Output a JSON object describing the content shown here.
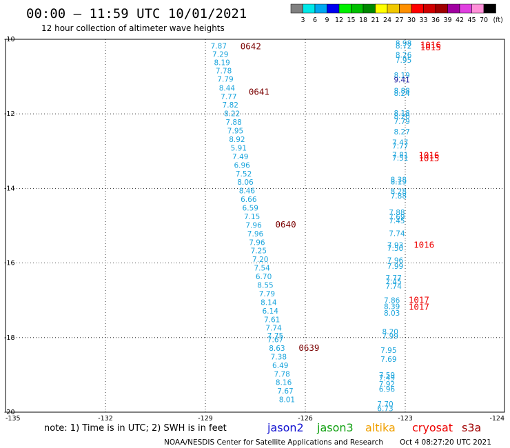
{
  "header": {
    "title": "00:00 – 11:59 UTC 10/01/2021",
    "subtitle": "12 hour collection of altimeter wave heights"
  },
  "legend": {
    "swatches": [
      {
        "color": "#808080",
        "label": "3"
      },
      {
        "color": "#00e8e8",
        "label": "6"
      },
      {
        "color": "#00a8f0",
        "label": "9"
      },
      {
        "color": "#0000f0",
        "label": "12"
      },
      {
        "color": "#00f000",
        "label": "15"
      },
      {
        "color": "#00c000",
        "label": "18"
      },
      {
        "color": "#008800",
        "label": "21"
      },
      {
        "color": "#ffff00",
        "label": "24"
      },
      {
        "color": "#f0c800",
        "label": "27"
      },
      {
        "color": "#ff9000",
        "label": "30"
      },
      {
        "color": "#ff0000",
        "label": "33"
      },
      {
        "color": "#d00000",
        "label": "36"
      },
      {
        "color": "#a00000",
        "label": "39"
      },
      {
        "color": "#a000a0",
        "label": "42"
      },
      {
        "color": "#e040e0",
        "label": "45"
      },
      {
        "color": "#ff90d8",
        "label": "70"
      },
      {
        "color": "#000000",
        "label": ""
      }
    ],
    "unit": "(ft)"
  },
  "map": {
    "lon_range": [
      -135,
      -124
    ],
    "lat_range": [
      -20,
      -10
    ],
    "x_ticks": [
      "-135",
      "-132",
      "-129",
      "-126",
      "-123",
      "-124"
    ],
    "y_ticks": [
      "-10",
      "-12",
      "-14",
      "-16",
      "-18",
      "-20"
    ],
    "grid": true
  },
  "colors": {
    "jason3_val": "#1aa4dc",
    "time_dark": "#7a0000",
    "time_red": "#ee0000",
    "dark_val": "#2020a0"
  },
  "tracks": [
    {
      "satellite": "jason3",
      "time_labels": [
        {
          "text": "0642",
          "lat": -10.18,
          "lon": -127.95,
          "color": "dark"
        },
        {
          "text": "0641",
          "lat": -11.4,
          "lon": -127.7,
          "color": "dark"
        },
        {
          "text": "0640",
          "lat": -14.95,
          "lon": -126.9,
          "color": "dark"
        },
        {
          "text": "0639",
          "lat": -18.26,
          "lon": -126.2,
          "color": "dark"
        }
      ],
      "values": [
        {
          "v": "7.87",
          "lat": -10.18,
          "lon": -128.6
        },
        {
          "v": "7.29",
          "lat": -10.4,
          "lon": -128.55
        },
        {
          "v": "8.19",
          "lat": -10.62,
          "lon": -128.5
        },
        {
          "v": "7.78",
          "lat": -10.84,
          "lon": -128.45
        },
        {
          "v": "7.79",
          "lat": -11.06,
          "lon": -128.4
        },
        {
          "v": "8.44",
          "lat": -11.3,
          "lon": -128.35
        },
        {
          "v": "7.77",
          "lat": -11.53,
          "lon": -128.3
        },
        {
          "v": "7.82",
          "lat": -11.76,
          "lon": -128.25
        },
        {
          "v": "8.22",
          "lat": -11.99,
          "lon": -128.2
        },
        {
          "v": "7.88",
          "lat": -12.22,
          "lon": -128.15
        },
        {
          "v": "7.95",
          "lat": -12.45,
          "lon": -128.1
        },
        {
          "v": "8.92",
          "lat": -12.68,
          "lon": -128.05
        },
        {
          "v": "5.91",
          "lat": -12.91,
          "lon": -128.0
        },
        {
          "v": "7.49",
          "lat": -13.14,
          "lon": -127.95
        },
        {
          "v": "6.96",
          "lat": -13.37,
          "lon": -127.9
        },
        {
          "v": "7.52",
          "lat": -13.6,
          "lon": -127.85
        },
        {
          "v": "8.06",
          "lat": -13.83,
          "lon": -127.8
        },
        {
          "v": "8.46",
          "lat": -14.06,
          "lon": -127.75
        },
        {
          "v": "6.66",
          "lat": -14.29,
          "lon": -127.7
        },
        {
          "v": "6.59",
          "lat": -14.52,
          "lon": -127.65
        },
        {
          "v": "7.15",
          "lat": -14.75,
          "lon": -127.6
        },
        {
          "v": "7.96",
          "lat": -14.98,
          "lon": -127.55
        },
        {
          "v": "7.96",
          "lat": -15.21,
          "lon": -127.5
        },
        {
          "v": "7.96",
          "lat": -15.44,
          "lon": -127.45
        },
        {
          "v": "7.25",
          "lat": -15.67,
          "lon": -127.4
        },
        {
          "v": "7.20",
          "lat": -15.9,
          "lon": -127.35
        },
        {
          "v": "7.54",
          "lat": -16.13,
          "lon": -127.3
        },
        {
          "v": "6.70",
          "lat": -16.36,
          "lon": -127.25
        },
        {
          "v": "8.55",
          "lat": -16.59,
          "lon": -127.2
        },
        {
          "v": "7.79",
          "lat": -16.82,
          "lon": -127.15
        },
        {
          "v": "8.14",
          "lat": -17.05,
          "lon": -127.1
        },
        {
          "v": "6.14",
          "lat": -17.28,
          "lon": -127.05
        },
        {
          "v": "7.61",
          "lat": -17.51,
          "lon": -127.0
        },
        {
          "v": "7.74",
          "lat": -17.74,
          "lon": -126.95
        },
        {
          "v": "7.75",
          "lat": -17.95,
          "lon": -126.9
        },
        {
          "v": "7.67",
          "lat": -18.05,
          "lon": -126.9
        },
        {
          "v": "8.63",
          "lat": -18.28,
          "lon": -126.85
        },
        {
          "v": "7.38",
          "lat": -18.51,
          "lon": -126.8
        },
        {
          "v": "6.49",
          "lat": -18.74,
          "lon": -126.75
        },
        {
          "v": "7.78",
          "lat": -18.97,
          "lon": -126.7
        },
        {
          "v": "8.16",
          "lat": -19.2,
          "lon": -126.65
        },
        {
          "v": "7.67",
          "lat": -19.43,
          "lon": -126.6
        },
        {
          "v": "8.01",
          "lat": -19.66,
          "lon": -126.55
        }
      ]
    },
    {
      "satellite": "jason3-b",
      "time_labels": [
        {
          "text": "1016",
          "lat": -10.14,
          "lon": -122.55,
          "color": "red"
        },
        {
          "text": "1015",
          "lat": -10.2,
          "lon": -122.55,
          "color": "red"
        },
        {
          "text": "1016",
          "lat": -13.1,
          "lon": -122.6,
          "color": "red"
        },
        {
          "text": "1015",
          "lat": -13.18,
          "lon": -122.6,
          "color": "red"
        },
        {
          "text": "1016",
          "lat": -15.5,
          "lon": -122.75,
          "color": "red"
        },
        {
          "text": "1017",
          "lat": -16.98,
          "lon": -122.9,
          "color": "red"
        },
        {
          "text": "1017",
          "lat": -17.16,
          "lon": -122.9,
          "color": "red"
        }
      ],
      "values": [
        {
          "v": "8.98",
          "lat": -10.1,
          "lon": -123.05
        },
        {
          "v": "8.72",
          "lat": -10.18,
          "lon": -123.05
        },
        {
          "v": "8.26",
          "lat": -10.42,
          "lon": -123.05
        },
        {
          "v": "7.95",
          "lat": -10.55,
          "lon": -123.05
        },
        {
          "v": "8.19",
          "lat": -10.96,
          "lon": -123.1
        },
        {
          "v": "9.41",
          "lat": -11.08,
          "lon": -123.1,
          "dark": true
        },
        {
          "v": "8.88",
          "lat": -11.38,
          "lon": -123.1
        },
        {
          "v": "8.24",
          "lat": -11.44,
          "lon": -123.1
        },
        {
          "v": "8.18",
          "lat": -11.98,
          "lon": -123.1
        },
        {
          "v": "8.20",
          "lat": -12.06,
          "lon": -123.1
        },
        {
          "v": "7.79",
          "lat": -12.2,
          "lon": -123.1
        },
        {
          "v": "8.27",
          "lat": -12.48,
          "lon": -123.1
        },
        {
          "v": "7.47",
          "lat": -12.76,
          "lon": -123.15
        },
        {
          "v": "7.77",
          "lat": -12.86,
          "lon": -123.15
        },
        {
          "v": "7.81",
          "lat": -13.1,
          "lon": -123.15
        },
        {
          "v": "7.51",
          "lat": -13.18,
          "lon": -123.15
        },
        {
          "v": "8.38",
          "lat": -13.76,
          "lon": -123.2
        },
        {
          "v": "8.19",
          "lat": -13.82,
          "lon": -123.2
        },
        {
          "v": "8.28",
          "lat": -14.08,
          "lon": -123.2
        },
        {
          "v": "7.88",
          "lat": -14.2,
          "lon": -123.2
        },
        {
          "v": "7.88",
          "lat": -14.64,
          "lon": -123.25
        },
        {
          "v": "7.69",
          "lat": -14.76,
          "lon": -123.25
        },
        {
          "v": "7.45",
          "lat": -14.86,
          "lon": -123.25
        },
        {
          "v": "7.74",
          "lat": -15.2,
          "lon": -123.25
        },
        {
          "v": "7.93",
          "lat": -15.52,
          "lon": -123.3
        },
        {
          "v": "7.50",
          "lat": -15.6,
          "lon": -123.3
        },
        {
          "v": "7.96",
          "lat": -15.92,
          "lon": -123.3
        },
        {
          "v": "7.99",
          "lat": -16.08,
          "lon": -123.3
        },
        {
          "v": "7.77",
          "lat": -16.4,
          "lon": -123.35
        },
        {
          "v": "7.45",
          "lat": -16.5,
          "lon": -123.35
        },
        {
          "v": "7.74",
          "lat": -16.62,
          "lon": -123.35
        },
        {
          "v": "7.86",
          "lat": -17.0,
          "lon": -123.4
        },
        {
          "v": "8.39",
          "lat": -17.16,
          "lon": -123.4
        },
        {
          "v": "8.03",
          "lat": -17.34,
          "lon": -123.4
        },
        {
          "v": "8.20",
          "lat": -17.84,
          "lon": -123.45
        },
        {
          "v": "7.99",
          "lat": -17.96,
          "lon": -123.45
        },
        {
          "v": "7.95",
          "lat": -18.34,
          "lon": -123.5
        },
        {
          "v": "7.69",
          "lat": -18.58,
          "lon": -123.5
        },
        {
          "v": "7.59",
          "lat": -19.0,
          "lon": -123.55
        },
        {
          "v": "7.49",
          "lat": -19.08,
          "lon": -123.55
        },
        {
          "v": "7.92",
          "lat": -19.24,
          "lon": -123.55
        },
        {
          "v": "6.96",
          "lat": -19.38,
          "lon": -123.55
        },
        {
          "v": "7.70",
          "lat": -19.78,
          "lon": -123.6
        },
        {
          "v": "6.73",
          "lat": -19.9,
          "lon": -123.6
        }
      ]
    }
  ],
  "footer": {
    "note": "note: 1) Time is in UTC; 2) SWH is in feet",
    "satellites": [
      {
        "name": "jason2",
        "color": "#1010d0"
      },
      {
        "name": "jason3",
        "color": "#10a010"
      },
      {
        "name": "altika",
        "color": "#f0a000"
      },
      {
        "name": "cryosat",
        "color": "#ee0000"
      },
      {
        "name": "s3a",
        "color": "#a00000"
      }
    ],
    "credit": "NOAA/NESDIS Center for Satellite Applications and Research",
    "timestamp": "Oct  4 08:27:20 UTC 2021"
  }
}
